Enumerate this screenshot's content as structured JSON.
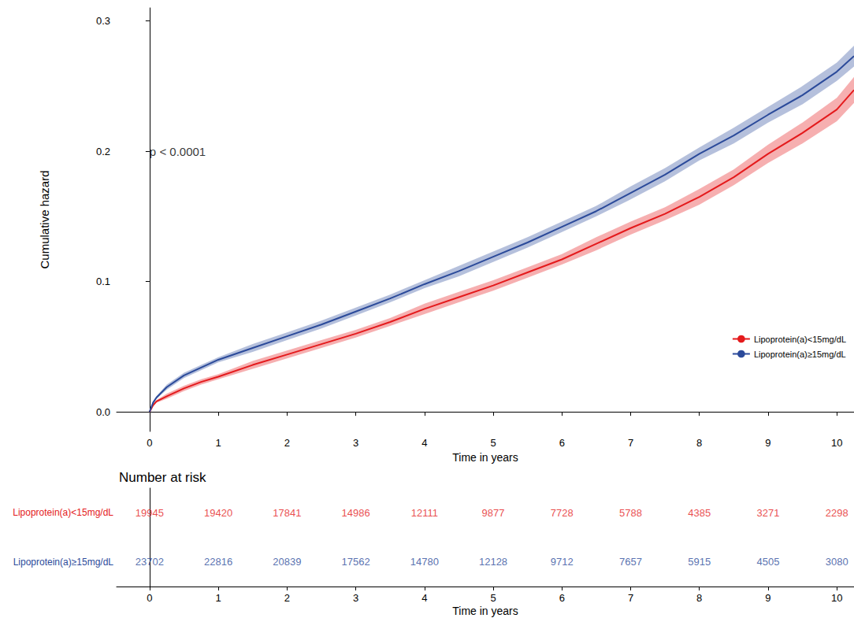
{
  "chart_data": {
    "type": "line",
    "y_label": "Cumulative hazard",
    "x_label": "Time in years",
    "xlim": [
      -0.48,
      10.25
    ],
    "xticks": [
      0,
      1,
      2,
      3,
      4,
      5,
      6,
      7,
      8,
      9,
      10
    ],
    "ylim": [
      -0.015,
      0.31
    ],
    "yticks": [
      {
        "value": 0,
        "label": "0.0"
      },
      0.1,
      0.2,
      0.3
    ],
    "grid": false,
    "legend": "lower right",
    "annotations": [
      {
        "text": "p < 0.0001",
        "x": 0,
        "y": 0.2
      }
    ],
    "x": [
      0,
      0.05,
      0.1,
      0.25,
      0.5,
      0.75,
      1,
      1.5,
      2,
      2.5,
      3,
      3.5,
      4,
      4.5,
      5,
      5.5,
      6,
      6.5,
      7,
      7.5,
      8,
      8.5,
      9,
      9.5,
      10,
      10.25
    ],
    "series": [
      {
        "name": "Lipoprotein(a)<15mg/dL",
        "color": "#e41a1c",
        "values": [
          0,
          0.005,
          0.008,
          0.012,
          0.018,
          0.023,
          0.027,
          0.036,
          0.044,
          0.052,
          0.06,
          0.069,
          0.079,
          0.088,
          0.097,
          0.107,
          0.117,
          0.129,
          0.141,
          0.152,
          0.165,
          0.18,
          0.198,
          0.214,
          0.232,
          0.247
        ],
        "lower": [
          0,
          0.004,
          0.007,
          0.01,
          0.016,
          0.021,
          0.025,
          0.033,
          0.041,
          0.049,
          0.057,
          0.066,
          0.075,
          0.084,
          0.093,
          0.103,
          0.113,
          0.124,
          0.136,
          0.147,
          0.159,
          0.174,
          0.191,
          0.206,
          0.223,
          0.237
        ],
        "upper": [
          0,
          0.006,
          0.009,
          0.014,
          0.02,
          0.025,
          0.029,
          0.039,
          0.047,
          0.055,
          0.063,
          0.072,
          0.083,
          0.092,
          0.101,
          0.111,
          0.121,
          0.134,
          0.146,
          0.157,
          0.171,
          0.186,
          0.205,
          0.222,
          0.241,
          0.257
        ],
        "at_risk": [
          19945,
          19420,
          17841,
          14986,
          12111,
          9877,
          7728,
          5788,
          4385,
          3271,
          2298
        ]
      },
      {
        "name": "Lipoprotein(a)≥15mg/dL",
        "color": "#2b4a9a",
        "values": [
          0,
          0.007,
          0.011,
          0.019,
          0.028,
          0.034,
          0.04,
          0.049,
          0.058,
          0.067,
          0.077,
          0.087,
          0.098,
          0.108,
          0.119,
          0.13,
          0.142,
          0.154,
          0.168,
          0.182,
          0.198,
          0.212,
          0.228,
          0.243,
          0.261,
          0.273
        ],
        "lower": [
          0,
          0.006,
          0.01,
          0.017,
          0.026,
          0.032,
          0.038,
          0.046,
          0.055,
          0.064,
          0.074,
          0.084,
          0.095,
          0.104,
          0.115,
          0.126,
          0.138,
          0.15,
          0.163,
          0.177,
          0.193,
          0.206,
          0.222,
          0.236,
          0.254,
          0.265
        ],
        "upper": [
          0,
          0.008,
          0.012,
          0.021,
          0.03,
          0.036,
          0.042,
          0.052,
          0.061,
          0.07,
          0.08,
          0.09,
          0.101,
          0.112,
          0.123,
          0.134,
          0.146,
          0.158,
          0.173,
          0.187,
          0.203,
          0.218,
          0.234,
          0.25,
          0.268,
          0.281
        ],
        "at_risk": [
          23702,
          22816,
          20839,
          17562,
          14780,
          12128,
          9712,
          7657,
          5915,
          4505,
          3080
        ]
      }
    ],
    "risk_table": {
      "title": "Number at risk",
      "x": [
        0,
        1,
        2,
        3,
        4,
        5,
        6,
        7,
        8,
        9,
        10
      ],
      "x_label": "Time in years"
    }
  }
}
